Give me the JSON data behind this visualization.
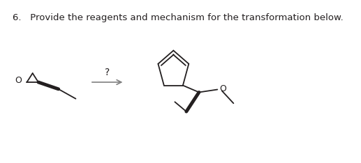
{
  "title": "6.   Provide the reagents and mechanism for the transformation below.",
  "title_fontsize": 9.5,
  "title_color": "#231f20",
  "background_color": "#ffffff",
  "lw": 1.3,
  "lw_bold": 3.5,
  "arrow_color": "#808080"
}
